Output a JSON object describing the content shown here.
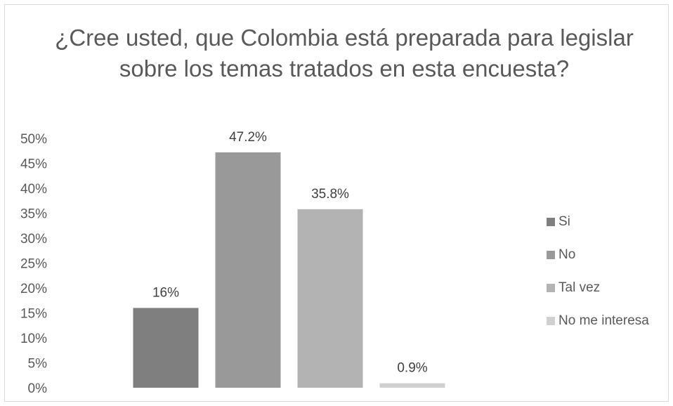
{
  "chart_data": {
    "type": "bar",
    "title": "¿Cree usted, que Colombia está preparada para legislar sobre los temas tratados en esta encuesta?",
    "categories": [
      "Si",
      "No",
      "Tal vez",
      "No me interesa"
    ],
    "values": [
      16,
      47.2,
      35.8,
      0.9
    ],
    "data_labels": [
      "16%",
      "47.2%",
      "35.8%",
      "0.9%"
    ],
    "colors": [
      "#7f7f7f",
      "#999999",
      "#b3b3b3",
      "#d0d0d0"
    ],
    "ylim": [
      0,
      50
    ],
    "yticks": [
      "0%",
      "5%",
      "10%",
      "15%",
      "20%",
      "25%",
      "30%",
      "35%",
      "40%",
      "45%",
      "50%"
    ],
    "ytick_values": [
      0,
      5,
      10,
      15,
      20,
      25,
      30,
      35,
      40,
      45,
      50
    ],
    "grid": false,
    "legend_position": "right",
    "xlabel": "",
    "ylabel": ""
  }
}
